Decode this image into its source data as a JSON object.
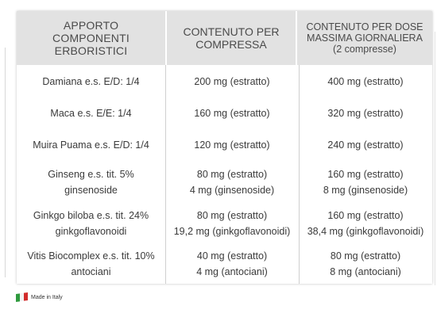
{
  "table": {
    "headers": [
      [
        "APPORTO",
        "COMPONENTI",
        "ERBORISTICI"
      ],
      [
        "CONTENUTO PER",
        "COMPRESSA"
      ],
      [
        "CONTENUTO PER DOSE",
        "MASSIMA GIORNALIERA",
        "(2 compresse)"
      ]
    ],
    "rows": [
      {
        "component": [
          "Damiana e.s. E/D: 1/4"
        ],
        "per_tablet": [
          "200 mg (estratto)"
        ],
        "per_max_dose": [
          "400 mg (estratto)"
        ]
      },
      {
        "component": [
          "Maca e.s. E/E: 1/4"
        ],
        "per_tablet": [
          "160 mg (estratto)"
        ],
        "per_max_dose": [
          "320 mg (estratto)"
        ]
      },
      {
        "component": [
          "Muira Puama e.s. E/D: 1/4"
        ],
        "per_tablet": [
          "120 mg (estratto)"
        ],
        "per_max_dose": [
          "240 mg (estratto)"
        ]
      },
      {
        "component": [
          "Ginseng e.s. tit. 5%",
          "ginsenoside"
        ],
        "per_tablet": [
          "80 mg (estratto)",
          "4 mg (ginsenoside)"
        ],
        "per_max_dose": [
          "160 mg (estratto)",
          "8 mg (ginsenoside)"
        ]
      },
      {
        "component": [
          "Ginkgo biloba e.s. tit. 24%",
          "ginkgoflavonoidi"
        ],
        "per_tablet": [
          "80 mg (estratto)",
          "19,2 mg (ginkgoflavonoidi)"
        ],
        "per_max_dose": [
          "160 mg (estratto)",
          "38,4 mg (ginkgoflavonoidi)"
        ]
      },
      {
        "component": [
          "Vitis Biocomplex e.s. tit. 10%",
          "antociani"
        ],
        "per_tablet": [
          "40 mg (estratto)",
          "4 mg (antociani)"
        ],
        "per_max_dose": [
          "80 mg (estratto)",
          "8 mg (antociani)"
        ]
      }
    ]
  },
  "footer": {
    "made_in": "Made in Italy",
    "flag_colors": [
      "#2f9a3e",
      "#f2f2f2",
      "#d22b2b"
    ]
  }
}
